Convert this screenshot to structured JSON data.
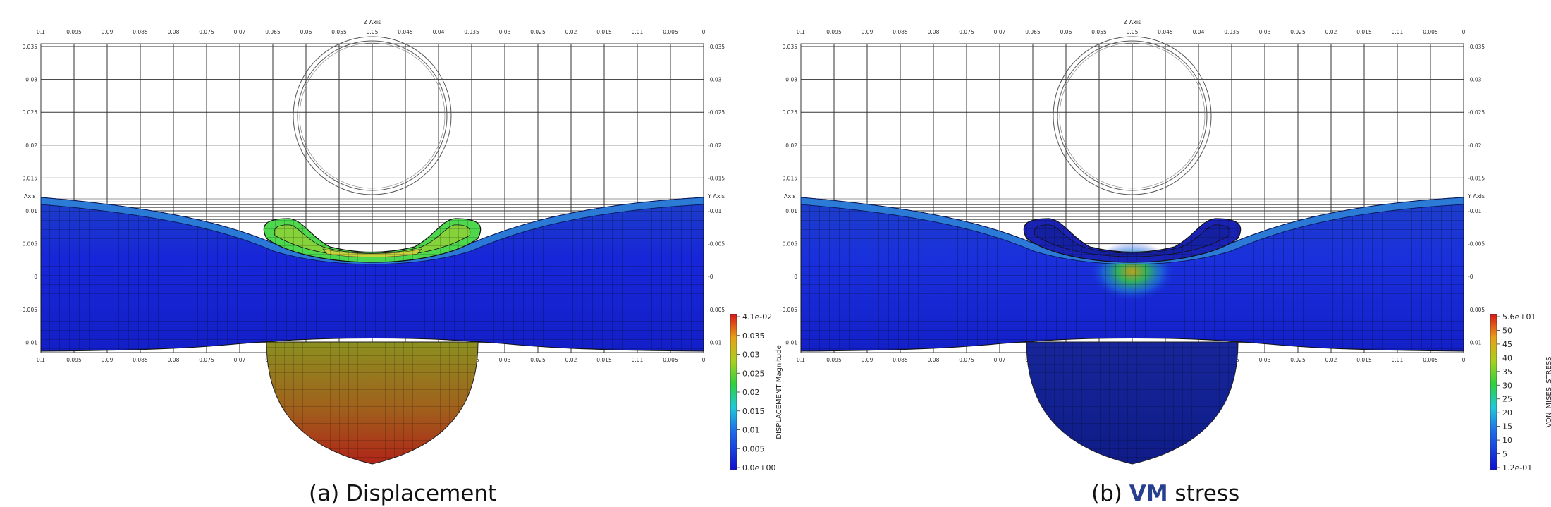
{
  "panels": [
    {
      "id": "a",
      "axis_top_title": "Z Axis",
      "axis_side_left": "Axis",
      "axis_side_right": "Y Axis",
      "z_ticks": [
        "0.1",
        "0.095",
        "0.09",
        "0.085",
        "0.08",
        "0.075",
        "0.07",
        "0.065",
        "0.06",
        "0.055",
        "0.05",
        "0.045",
        "0.04",
        "0.035",
        "0.03",
        "0.025",
        "0.02",
        "0.015",
        "0.01",
        "0.005",
        "0"
      ],
      "y_ticks": [
        "0.035",
        "0.03",
        "0.025",
        "0.02",
        "0.015",
        "0.01",
        "0.005",
        "0",
        "-0.005",
        "-0.01"
      ],
      "colorbar": {
        "title": "DISPLACEMENT Magnitude",
        "labels": [
          "4.1e-02",
          "0.035",
          "0.03",
          "0.025",
          "0.02",
          "0.015",
          "0.01",
          "0.005",
          "0.0e+00"
        ]
      },
      "caption": {
        "prefix": "(a) ",
        "highlight": "",
        "suffix": "Displacement"
      },
      "colors": {
        "slab": "#1a2bdc",
        "slab_dark": "#0d1aa6",
        "skin": "#2f86d8",
        "ring": "#4ed84e",
        "ring_inner": "#86d23a",
        "lid": "#c8d23a",
        "bowl_top": "#9c8a1c",
        "bowl_bottom": "#a8301a"
      }
    },
    {
      "id": "b",
      "axis_top_title": "Z Axis",
      "axis_side_left": "Axis",
      "axis_side_right": "Y Axis",
      "z_ticks": [
        "0.1",
        "0.095",
        "0.09",
        "0.085",
        "0.08",
        "0.075",
        "0.07",
        "0.065",
        "0.06",
        "0.055",
        "0.05",
        "0.045",
        "0.04",
        "0.035",
        "0.03",
        "0.025",
        "0.02",
        "0.015",
        "0.01",
        "0.005",
        "0"
      ],
      "y_ticks": [
        "0.035",
        "0.03",
        "0.025",
        "0.02",
        "0.015",
        "0.01",
        "0.005",
        "0",
        "-0.005",
        "-0.01"
      ],
      "colorbar": {
        "title": "VON_MISES_STRESS",
        "labels": [
          "5.6e+01",
          "50",
          "45",
          "40",
          "35",
          "30",
          "25",
          "20",
          "15",
          "10",
          "5",
          "1.2e-01"
        ]
      },
      "caption": {
        "prefix": "(b) ",
        "highlight": "VM",
        "suffix": " stress"
      },
      "colors": {
        "slab": "#1a2bdc",
        "slab_dark": "#0d1aa6",
        "skin": "#2f86d8",
        "ring": "#1a22b4",
        "ring_inner": "#1520a0",
        "lid": "#1a2bdc",
        "bowl_top": "#152596",
        "bowl_bottom": "#101d8a"
      }
    }
  ]
}
